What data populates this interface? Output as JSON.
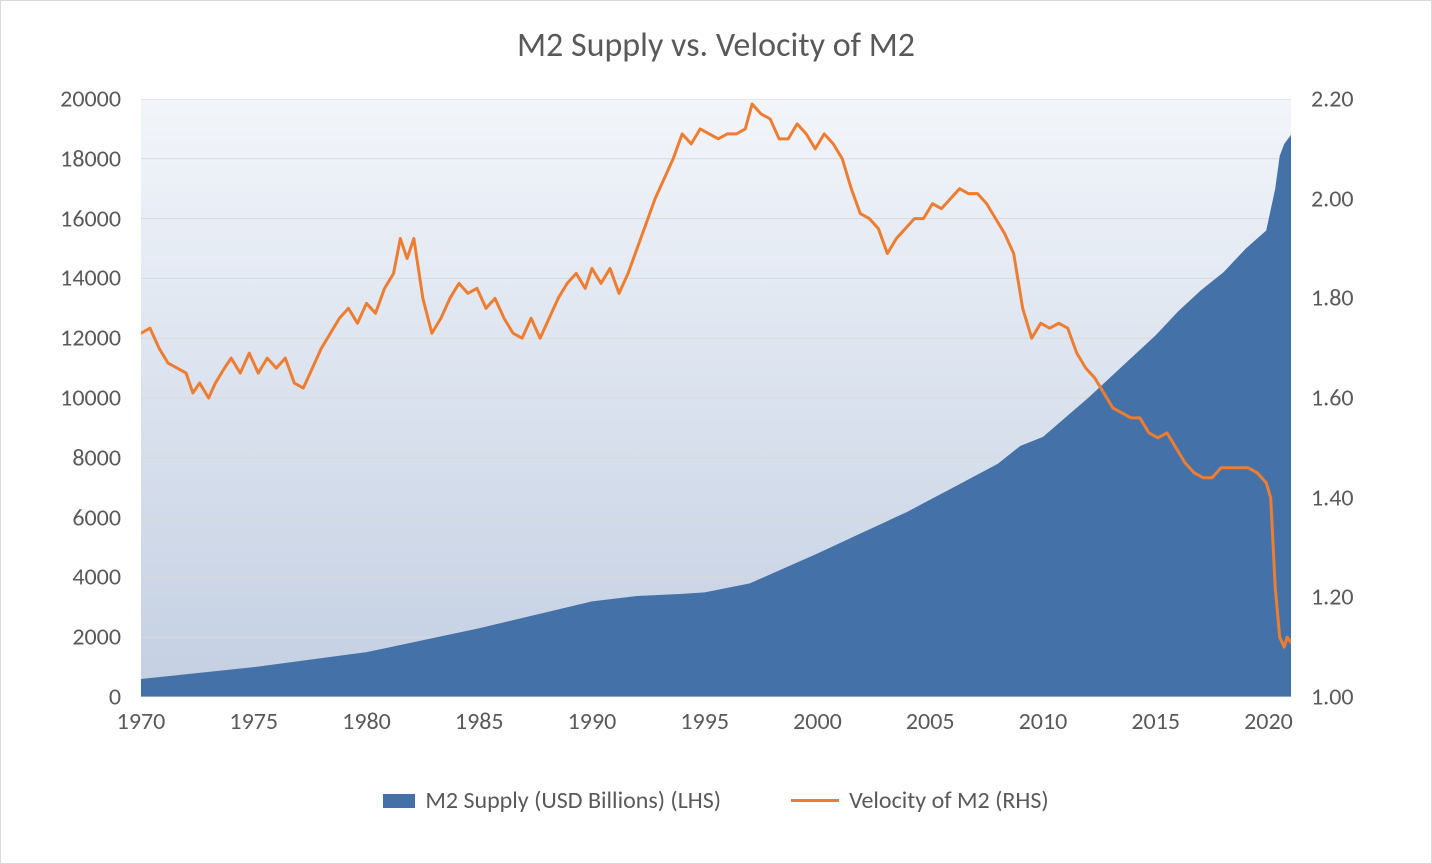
{
  "chart": {
    "type": "combo-area-line",
    "title": "M2 Supply vs. Velocity of M2",
    "title_fontsize": 34,
    "title_color": "#595959",
    "axis_label_fontsize": 24,
    "axis_label_color": "#595959",
    "border_color": "#d9d9d9",
    "plot_background_top": "#f2f5fa",
    "plot_background_bottom": "#c3cfe2",
    "gridline_color": "#d9d9d9",
    "axis_line_color": "#d9d9d9",
    "x": {
      "min": 1970,
      "max": 2021,
      "ticks": [
        1970,
        1975,
        1980,
        1985,
        1990,
        1995,
        2000,
        2005,
        2010,
        2015,
        2020
      ]
    },
    "y_left": {
      "min": 0,
      "max": 20000,
      "ticks": [
        0,
        2000,
        4000,
        6000,
        8000,
        10000,
        12000,
        14000,
        16000,
        18000,
        20000
      ]
    },
    "y_right": {
      "min": 1.0,
      "max": 2.2,
      "ticks": [
        "1.00",
        "1.20",
        "1.40",
        "1.60",
        "1.80",
        "2.00",
        "2.20"
      ],
      "tick_values": [
        1.0,
        1.2,
        1.4,
        1.6,
        1.8,
        2.0,
        2.2
      ]
    },
    "legend": {
      "series1": "M2 Supply (USD Billions) (LHS)",
      "series2": "Velocity of M2 (RHS)"
    },
    "series_area": {
      "name": "M2 Supply (USD Billions) (LHS)",
      "color": "#4472a8",
      "fill_opacity": 1.0,
      "data": [
        [
          1970,
          600
        ],
        [
          1975,
          1000
        ],
        [
          1980,
          1500
        ],
        [
          1985,
          2300
        ],
        [
          1990,
          3200
        ],
        [
          1992,
          3380
        ],
        [
          1994,
          3450
        ],
        [
          1995,
          3500
        ],
        [
          1997,
          3800
        ],
        [
          2000,
          4800
        ],
        [
          2002,
          5500
        ],
        [
          2004,
          6200
        ],
        [
          2005,
          6600
        ],
        [
          2006,
          7000
        ],
        [
          2008,
          7800
        ],
        [
          2009,
          8400
        ],
        [
          2010,
          8700
        ],
        [
          2012,
          10000
        ],
        [
          2014,
          11400
        ],
        [
          2015,
          12100
        ],
        [
          2016,
          12900
        ],
        [
          2017,
          13600
        ],
        [
          2018,
          14200
        ],
        [
          2019,
          15000
        ],
        [
          2019.9,
          15600
        ],
        [
          2020.3,
          17000
        ],
        [
          2020.5,
          18100
        ],
        [
          2020.7,
          18500
        ],
        [
          2021,
          18800
        ]
      ]
    },
    "series_line": {
      "name": "Velocity of M2 (RHS)",
      "color": "#ed7d31",
      "line_width": 3,
      "data": [
        [
          1970,
          1.73
        ],
        [
          1970.4,
          1.74
        ],
        [
          1970.8,
          1.7
        ],
        [
          1971.2,
          1.67
        ],
        [
          1971.6,
          1.66
        ],
        [
          1972,
          1.65
        ],
        [
          1972.3,
          1.61
        ],
        [
          1972.6,
          1.63
        ],
        [
          1973,
          1.6
        ],
        [
          1973.3,
          1.63
        ],
        [
          1973.7,
          1.66
        ],
        [
          1974,
          1.68
        ],
        [
          1974.4,
          1.65
        ],
        [
          1974.8,
          1.69
        ],
        [
          1975.2,
          1.65
        ],
        [
          1975.6,
          1.68
        ],
        [
          1976,
          1.66
        ],
        [
          1976.4,
          1.68
        ],
        [
          1976.8,
          1.63
        ],
        [
          1977.2,
          1.62
        ],
        [
          1977.6,
          1.66
        ],
        [
          1978,
          1.7
        ],
        [
          1978.4,
          1.73
        ],
        [
          1978.8,
          1.76
        ],
        [
          1979.2,
          1.78
        ],
        [
          1979.6,
          1.75
        ],
        [
          1980,
          1.79
        ],
        [
          1980.4,
          1.77
        ],
        [
          1980.8,
          1.82
        ],
        [
          1981.2,
          1.85
        ],
        [
          1981.5,
          1.92
        ],
        [
          1981.8,
          1.88
        ],
        [
          1982.1,
          1.92
        ],
        [
          1982.5,
          1.8
        ],
        [
          1982.9,
          1.73
        ],
        [
          1983.3,
          1.76
        ],
        [
          1983.7,
          1.8
        ],
        [
          1984.1,
          1.83
        ],
        [
          1984.5,
          1.81
        ],
        [
          1984.9,
          1.82
        ],
        [
          1985.3,
          1.78
        ],
        [
          1985.7,
          1.8
        ],
        [
          1986.1,
          1.76
        ],
        [
          1986.5,
          1.73
        ],
        [
          1986.9,
          1.72
        ],
        [
          1987.3,
          1.76
        ],
        [
          1987.7,
          1.72
        ],
        [
          1988.1,
          1.76
        ],
        [
          1988.5,
          1.8
        ],
        [
          1988.9,
          1.83
        ],
        [
          1989.3,
          1.85
        ],
        [
          1989.7,
          1.82
        ],
        [
          1990,
          1.86
        ],
        [
          1990.4,
          1.83
        ],
        [
          1990.8,
          1.86
        ],
        [
          1991.2,
          1.81
        ],
        [
          1991.6,
          1.85
        ],
        [
          1992,
          1.9
        ],
        [
          1992.4,
          1.95
        ],
        [
          1992.8,
          2.0
        ],
        [
          1993.2,
          2.04
        ],
        [
          1993.6,
          2.08
        ],
        [
          1994,
          2.13
        ],
        [
          1994.4,
          2.11
        ],
        [
          1994.8,
          2.14
        ],
        [
          1995.2,
          2.13
        ],
        [
          1995.6,
          2.12
        ],
        [
          1996,
          2.13
        ],
        [
          1996.4,
          2.13
        ],
        [
          1996.8,
          2.14
        ],
        [
          1997.1,
          2.19
        ],
        [
          1997.5,
          2.17
        ],
        [
          1997.9,
          2.16
        ],
        [
          1998.3,
          2.12
        ],
        [
          1998.7,
          2.12
        ],
        [
          1999.1,
          2.15
        ],
        [
          1999.5,
          2.13
        ],
        [
          1999.9,
          2.1
        ],
        [
          2000.3,
          2.13
        ],
        [
          2000.7,
          2.11
        ],
        [
          2001.1,
          2.08
        ],
        [
          2001.5,
          2.02
        ],
        [
          2001.9,
          1.97
        ],
        [
          2002.3,
          1.96
        ],
        [
          2002.7,
          1.94
        ],
        [
          2003.1,
          1.89
        ],
        [
          2003.5,
          1.92
        ],
        [
          2003.9,
          1.94
        ],
        [
          2004.3,
          1.96
        ],
        [
          2004.7,
          1.96
        ],
        [
          2005.1,
          1.99
        ],
        [
          2005.5,
          1.98
        ],
        [
          2005.9,
          2.0
        ],
        [
          2006.3,
          2.02
        ],
        [
          2006.7,
          2.01
        ],
        [
          2007.1,
          2.01
        ],
        [
          2007.5,
          1.99
        ],
        [
          2007.9,
          1.96
        ],
        [
          2008.3,
          1.93
        ],
        [
          2008.7,
          1.89
        ],
        [
          2009.1,
          1.78
        ],
        [
          2009.5,
          1.72
        ],
        [
          2009.9,
          1.75
        ],
        [
          2010.3,
          1.74
        ],
        [
          2010.7,
          1.75
        ],
        [
          2011.1,
          1.74
        ],
        [
          2011.5,
          1.69
        ],
        [
          2011.9,
          1.66
        ],
        [
          2012.3,
          1.64
        ],
        [
          2012.7,
          1.61
        ],
        [
          2013.1,
          1.58
        ],
        [
          2013.5,
          1.57
        ],
        [
          2013.9,
          1.56
        ],
        [
          2014.3,
          1.56
        ],
        [
          2014.7,
          1.53
        ],
        [
          2015.1,
          1.52
        ],
        [
          2015.5,
          1.53
        ],
        [
          2015.9,
          1.5
        ],
        [
          2016.3,
          1.47
        ],
        [
          2016.7,
          1.45
        ],
        [
          2017.1,
          1.44
        ],
        [
          2017.5,
          1.44
        ],
        [
          2017.9,
          1.46
        ],
        [
          2018.3,
          1.46
        ],
        [
          2018.7,
          1.46
        ],
        [
          2019.1,
          1.46
        ],
        [
          2019.5,
          1.45
        ],
        [
          2019.9,
          1.43
        ],
        [
          2020.1,
          1.4
        ],
        [
          2020.3,
          1.22
        ],
        [
          2020.5,
          1.12
        ],
        [
          2020.7,
          1.1
        ],
        [
          2020.83,
          1.12
        ],
        [
          2021,
          1.11
        ]
      ]
    }
  }
}
